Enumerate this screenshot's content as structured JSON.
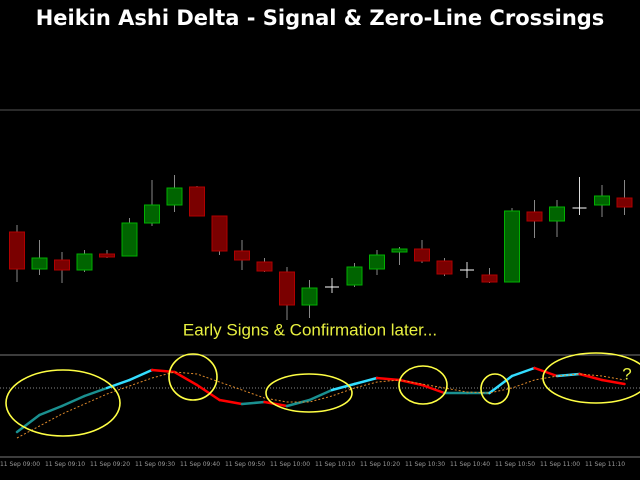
{
  "chart_data": [
    {
      "type": "candlestick",
      "title": "Heikin Ashi Delta - Signal & Zero-Line Crossings",
      "annotations": [
        "Early Signs & Confirmation later...",
        "?"
      ],
      "categories": [
        "11 Sep 09:00",
        null,
        "11 Sep 09:10",
        null,
        "11 Sep 09:20",
        null,
        "11 Sep 09:30",
        null,
        "11 Sep 09:40",
        null,
        "11 Sep 09:50",
        null,
        "11 Sep 10:00",
        null,
        "11 Sep 10:10",
        null,
        "11 Sep 10:20",
        null,
        "11 Sep 10:30",
        null,
        "11 Sep 10:40",
        null,
        "11 Sep 10:50",
        null,
        "11 Sep 11:00",
        null,
        "11 Sep 11:10",
        null
      ],
      "open": [
        118,
        81,
        90,
        80,
        96,
        94,
        127,
        145,
        163,
        134,
        99,
        88,
        78,
        45,
        63,
        65,
        81,
        98,
        101,
        89,
        80,
        75,
        68,
        138,
        129,
        142,
        145,
        152
      ],
      "high": [
        125,
        110,
        98,
        100,
        100,
        132,
        170,
        175,
        164,
        134,
        110,
        92,
        83,
        70,
        72,
        87,
        100,
        103,
        110,
        92,
        88,
        82,
        142,
        150,
        150,
        173,
        165,
        170
      ],
      "low": [
        68,
        75,
        67,
        78,
        92,
        94,
        124,
        138,
        134,
        95,
        80,
        78,
        30,
        32,
        57,
        63,
        75,
        85,
        87,
        74,
        72,
        67,
        68,
        112,
        113,
        135,
        133,
        135
      ],
      "close": [
        81,
        92,
        80,
        96,
        93,
        127,
        145,
        162,
        134,
        99,
        90,
        79,
        45,
        62,
        63,
        83,
        95,
        101,
        89,
        76,
        80,
        68,
        139,
        129,
        143,
        142,
        154,
        143
      ],
      "up_color": "#006400",
      "down_color": "#7a0000",
      "doji_color": "#ffffff",
      "ylim": [
        0,
        240
      ]
    },
    {
      "type": "line",
      "zero_line": true,
      "series": [
        {
          "color": "#ff0000",
          "color_up": "#33ddff",
          "color_up_below": "#1a9090",
          "values": [
            -44,
            -27,
            -18,
            -8,
            0,
            8,
            18,
            16,
            3,
            -12,
            -16,
            -14,
            -18,
            -12,
            -2,
            4,
            10,
            8,
            3,
            -5,
            -5,
            -5,
            12,
            20,
            12,
            14,
            8,
            4
          ]
        },
        {
          "color": "#e08a2a",
          "dashed": true,
          "values": [
            -50,
            -38,
            -26,
            -16,
            -6,
            2,
            10,
            16,
            14,
            6,
            -2,
            -10,
            -14,
            -14,
            -8,
            0,
            6,
            8,
            4,
            0,
            -4,
            -5,
            0,
            8,
            12,
            14,
            12,
            8
          ]
        }
      ],
      "ylim": [
        -60,
        33
      ]
    }
  ]
}
